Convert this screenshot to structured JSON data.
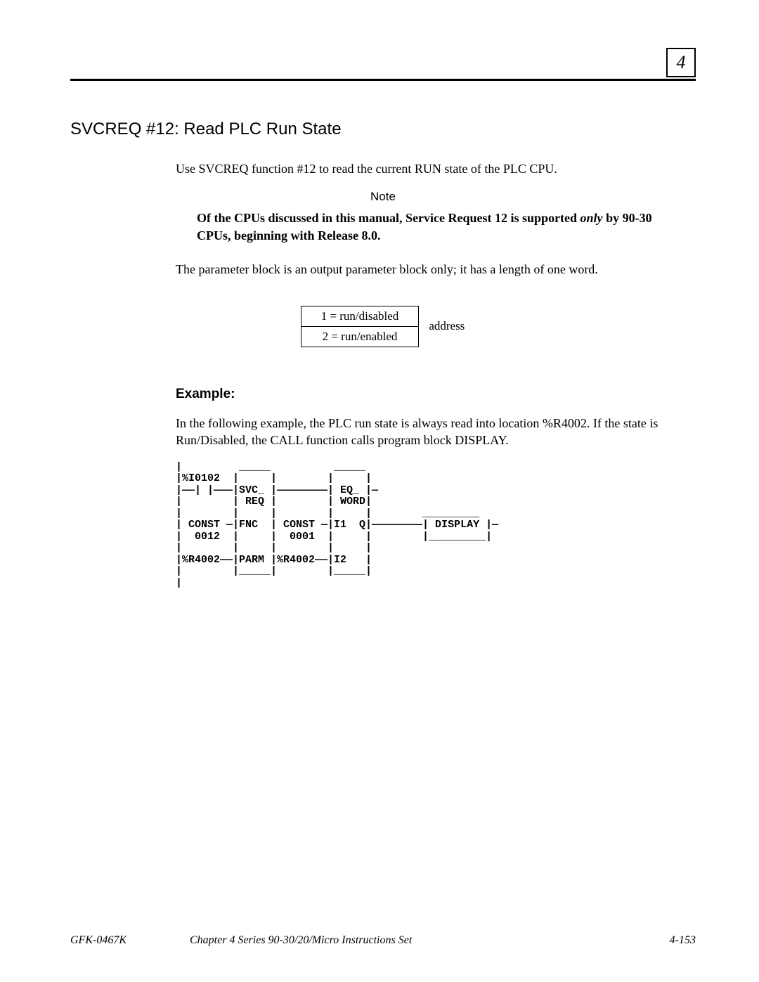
{
  "chapter_number": "4",
  "title": "SVCREQ #12:  Read PLC Run State",
  "intro": "Use SVCREQ function #12 to read the current RUN state of the PLC CPU.",
  "note_label": "Note",
  "note_text_prefix": "Of the CPUs discussed in this manual, Service Request 12 is supported ",
  "note_text_only": "only",
  "note_text_suffix": " by 90-30 CPUs, beginning with Release 8.0.",
  "param_block_text": "The parameter block is an output parameter block only; it has a length of one word.",
  "table": {
    "rows": [
      "1 = run/disabled",
      "2 = run/enabled"
    ],
    "side_label": "address"
  },
  "example_heading": "Example:",
  "example_text": "In the following example, the PLC run state is always read into location %R4002.  If the state is Run/Disabled, the CALL function calls program block DISPLAY.",
  "ladder_diagram": "|         _____          _____\n|%I0102  |     |        |     |\n|——| |———|SVC_ |————————| EQ_ |—\n|        | REQ |        | WORD|\n|        |     |        |     |        _________\n| CONST —|FNC  | CONST —|I1  Q|————————| DISPLAY |—\n|  0012  |     |  0001  |     |        |_________|\n|        |     |        |     |\n|%R4002——|PARM |%R4002——|I2   |\n|        |_____|        |_____|\n|",
  "footer": {
    "left": "GFK-0467K",
    "center": "Chapter 4  Series 90-30/20/Micro Instructions Set",
    "right": "4-153"
  }
}
